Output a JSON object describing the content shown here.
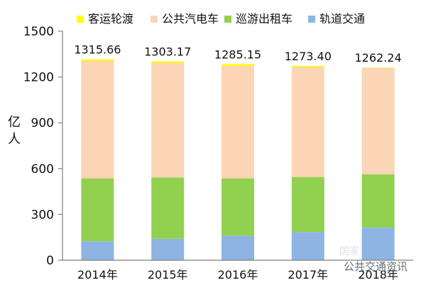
{
  "chart_data": {
    "type": "bar",
    "stacked": true,
    "categories": [
      "2014年",
      "2015年",
      "2016年",
      "2017年",
      "2018年"
    ],
    "series": [
      {
        "name": "轨道交通",
        "color": "#8db4e2",
        "values": [
          124,
          140,
          161,
          185,
          213
        ]
      },
      {
        "name": "巡游出租车",
        "color": "#92d050",
        "values": [
          412,
          402,
          375,
          360,
          350
        ]
      },
      {
        "name": "公共汽电车",
        "color": "#fbd5b5",
        "values": [
          769,
          751,
          738,
          721,
          697
        ]
      },
      {
        "name": "客运轮渡",
        "color": "#ffff00",
        "values": [
          10.66,
          10.17,
          11.15,
          7.4,
          2.24
        ]
      }
    ],
    "legend_order": [
      "客运轮渡",
      "公共汽电车",
      "巡游出租车",
      "轨道交通"
    ],
    "totals": [
      "1315.66",
      "1303.17",
      "1285.15",
      "1273.40",
      "1262.24"
    ],
    "ylabel": "亿人",
    "ylim": [
      0,
      1500
    ],
    "yticks": [
      "0",
      "300",
      "600",
      "900",
      "1200",
      "1500"
    ],
    "grid": false,
    "legend_position": "top"
  },
  "watermark": {
    "text": "公共交通资讯",
    "faint_text": "国家"
  }
}
